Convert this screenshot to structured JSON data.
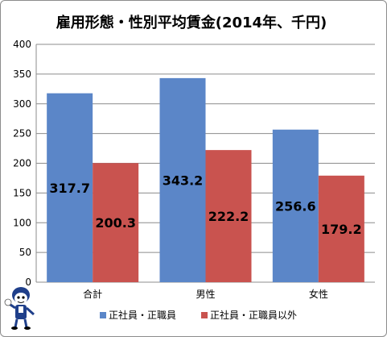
{
  "chart_data": {
    "type": "bar",
    "title": "雇用形態・性別平均賃金(2014年、千円)",
    "categories": [
      "合計",
      "男性",
      "女性"
    ],
    "series": [
      {
        "name": "正社員・正職員",
        "values": [
          317.7,
          343.2,
          256.6
        ],
        "color": "#5b86c8"
      },
      {
        "name": "正社員・正職員以外",
        "values": [
          200.3,
          222.2,
          179.2
        ],
        "color": "#c9534f"
      }
    ],
    "data_labels": [
      [
        "317.7",
        "343.2",
        "256.6"
      ],
      [
        "200.3",
        "222.2",
        "179.2"
      ]
    ],
    "yticks": [
      "0",
      "50",
      "100",
      "150",
      "200",
      "250",
      "300",
      "350",
      "400"
    ],
    "ylim": [
      0,
      400
    ],
    "grid": true,
    "legend_position": "bottom"
  },
  "mascot": {
    "icon": "mascot-character-icon"
  }
}
